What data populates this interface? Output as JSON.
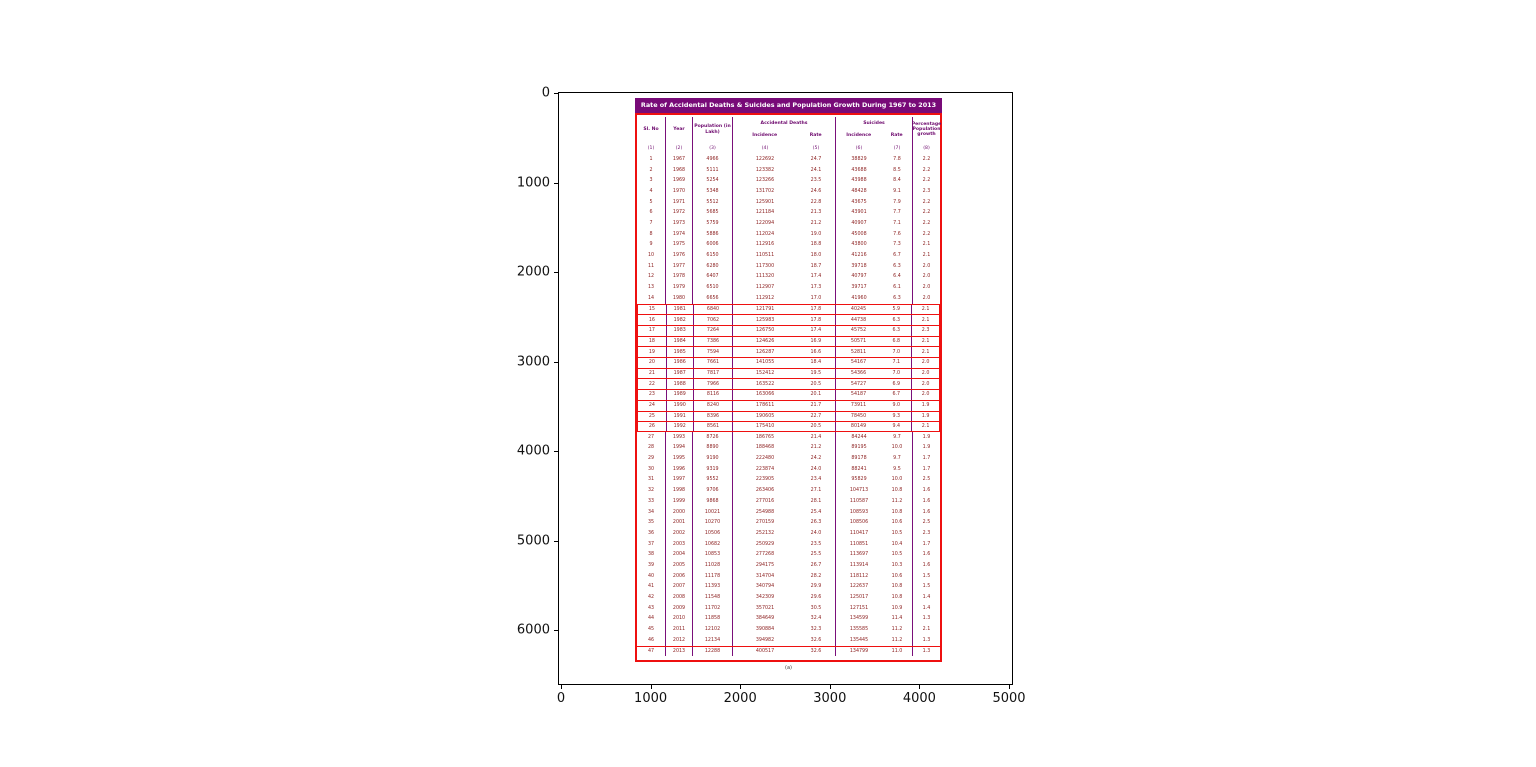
{
  "chart_data": {
    "type": "table",
    "title": "Rate of Accidental Deaths & Suicides and Population Growth During 1967 to 2013",
    "caption": "(a)",
    "header": {
      "sl_no": "Sl. No",
      "year": "Year",
      "population": "Population (in Lakh)",
      "accidental_deaths": "Accidental Deaths",
      "suicides": "Suicides",
      "incidence": "Incidence",
      "rate": "Rate",
      "growth": "Percentage Population growth"
    },
    "col_numbers": [
      "(1)",
      "(2)",
      "(3)",
      "(4)",
      "(5)",
      "(6)",
      "(7)",
      "(8)"
    ],
    "columns": [
      "Sl. No",
      "Year",
      "Population (in Lakh)",
      "Accidental Deaths Incidence",
      "Accidental Deaths Rate",
      "Suicides Incidence",
      "Suicides Rate",
      "Percentage Population growth"
    ],
    "rows": [
      [
        "1",
        "1967",
        "4966",
        "122692",
        "24.7",
        "38829",
        "7.8",
        "2.2"
      ],
      [
        "2",
        "1968",
        "5111",
        "123382",
        "24.1",
        "43688",
        "8.5",
        "2.2"
      ],
      [
        "3",
        "1969",
        "5254",
        "123266",
        "23.5",
        "43988",
        "8.4",
        "2.2"
      ],
      [
        "4",
        "1970",
        "5348",
        "131702",
        "24.6",
        "48428",
        "9.1",
        "2.3"
      ],
      [
        "5",
        "1971",
        "5512",
        "125901",
        "22.8",
        "43675",
        "7.9",
        "2.2"
      ],
      [
        "6",
        "1972",
        "5685",
        "121184",
        "21.3",
        "43901",
        "7.7",
        "2.2"
      ],
      [
        "7",
        "1973",
        "5759",
        "122094",
        "21.2",
        "40907",
        "7.1",
        "2.2"
      ],
      [
        "8",
        "1974",
        "5886",
        "112024",
        "19.0",
        "45008",
        "7.6",
        "2.2"
      ],
      [
        "9",
        "1975",
        "6006",
        "112916",
        "18.8",
        "43800",
        "7.3",
        "2.1"
      ],
      [
        "10",
        "1976",
        "6150",
        "110511",
        "18.0",
        "41216",
        "6.7",
        "2.1"
      ],
      [
        "11",
        "1977",
        "6280",
        "117300",
        "18.7",
        "39718",
        "6.3",
        "2.0"
      ],
      [
        "12",
        "1978",
        "6407",
        "111320",
        "17.4",
        "40797",
        "6.4",
        "2.0"
      ],
      [
        "13",
        "1979",
        "6510",
        "112907",
        "17.3",
        "39717",
        "6.1",
        "2.0"
      ],
      [
        "14",
        "1980",
        "6656",
        "112912",
        "17.0",
        "41960",
        "6.3",
        "2.0"
      ],
      [
        "15",
        "1981",
        "6840",
        "121791",
        "17.8",
        "40245",
        "5.9",
        "2.1"
      ],
      [
        "16",
        "1982",
        "7062",
        "125983",
        "17.8",
        "44738",
        "6.3",
        "2.1"
      ],
      [
        "17",
        "1983",
        "7264",
        "126750",
        "17.4",
        "45752",
        "6.3",
        "2.3"
      ],
      [
        "18",
        "1984",
        "7386",
        "124626",
        "16.9",
        "50571",
        "6.8",
        "2.1"
      ],
      [
        "19",
        "1985",
        "7594",
        "126287",
        "16.6",
        "52811",
        "7.0",
        "2.1"
      ],
      [
        "20",
        "1986",
        "7661",
        "141055",
        "18.4",
        "54167",
        "7.1",
        "2.0"
      ],
      [
        "21",
        "1987",
        "7817",
        "152412",
        "19.5",
        "54366",
        "7.0",
        "2.0"
      ],
      [
        "22",
        "1988",
        "7966",
        "163522",
        "20.5",
        "54727",
        "6.9",
        "2.0"
      ],
      [
        "23",
        "1989",
        "8116",
        "163066",
        "20.1",
        "54187",
        "6.7",
        "2.0"
      ],
      [
        "24",
        "1990",
        "8240",
        "178611",
        "21.7",
        "73911",
        "9.0",
        "1.9"
      ],
      [
        "25",
        "1991",
        "8396",
        "190605",
        "22.7",
        "78450",
        "9.3",
        "1.9"
      ],
      [
        "26",
        "1992",
        "8561",
        "175410",
        "20.5",
        "80149",
        "9.4",
        "2.1"
      ],
      [
        "27",
        "1993",
        "8726",
        "186765",
        "21.4",
        "84244",
        "9.7",
        "1.9"
      ],
      [
        "28",
        "1994",
        "8890",
        "188468",
        "21.2",
        "89195",
        "10.0",
        "1.9"
      ],
      [
        "29",
        "1995",
        "9190",
        "222480",
        "24.2",
        "89178",
        "9.7",
        "1.7"
      ],
      [
        "30",
        "1996",
        "9319",
        "223874",
        "24.0",
        "88241",
        "9.5",
        "1.7"
      ],
      [
        "31",
        "1997",
        "9552",
        "223905",
        "23.4",
        "95829",
        "10.0",
        "2.5"
      ],
      [
        "32",
        "1998",
        "9706",
        "263406",
        "27.1",
        "104713",
        "10.8",
        "1.6"
      ],
      [
        "33",
        "1999",
        "9868",
        "277016",
        "28.1",
        "110587",
        "11.2",
        "1.6"
      ],
      [
        "34",
        "2000",
        "10021",
        "254988",
        "25.4",
        "108593",
        "10.8",
        "1.6"
      ],
      [
        "35",
        "2001",
        "10270",
        "270159",
        "26.3",
        "108506",
        "10.6",
        "2.5"
      ],
      [
        "36",
        "2002",
        "10506",
        "252132",
        "24.0",
        "110417",
        "10.5",
        "2.3"
      ],
      [
        "37",
        "2003",
        "10682",
        "250929",
        "23.5",
        "110851",
        "10.4",
        "1.7"
      ],
      [
        "38",
        "2004",
        "10853",
        "277268",
        "25.5",
        "113697",
        "10.5",
        "1.6"
      ],
      [
        "39",
        "2005",
        "11028",
        "294175",
        "26.7",
        "113914",
        "10.3",
        "1.6"
      ],
      [
        "40",
        "2006",
        "11178",
        "314704",
        "28.2",
        "118112",
        "10.6",
        "1.5"
      ],
      [
        "41",
        "2007",
        "11393",
        "340794",
        "29.9",
        "122637",
        "10.8",
        "1.5"
      ],
      [
        "42",
        "2008",
        "11548",
        "342309",
        "29.6",
        "125017",
        "10.8",
        "1.4"
      ],
      [
        "43",
        "2009",
        "11702",
        "357021",
        "30.5",
        "127151",
        "10.9",
        "1.4"
      ],
      [
        "44",
        "2010",
        "11858",
        "384649",
        "32.4",
        "134599",
        "11.4",
        "1.3"
      ],
      [
        "45",
        "2011",
        "12102",
        "390884",
        "32.3",
        "135585",
        "11.2",
        "2.1"
      ],
      [
        "46",
        "2012",
        "12134",
        "394982",
        "32.6",
        "135445",
        "11.2",
        "1.3"
      ],
      [
        "47",
        "2013",
        "12288",
        "400517",
        "32.6",
        "134799",
        "11.0",
        "1.3"
      ]
    ],
    "axes": {
      "xticks": [
        0,
        1000,
        2000,
        3000,
        4000,
        5000
      ],
      "yticks": [
        0,
        1000,
        2000,
        3000,
        4000,
        5000,
        6000
      ],
      "y_inverted": true,
      "grid": false
    },
    "colors": {
      "table_border_red": "#ee1010",
      "grid_purple": "#7a0f7a",
      "title_bg_purple": "#780a78",
      "title_text": "#ffffff",
      "data_text_maroon": "#8e2424",
      "header_text_purple": "#6e0a6e"
    }
  }
}
